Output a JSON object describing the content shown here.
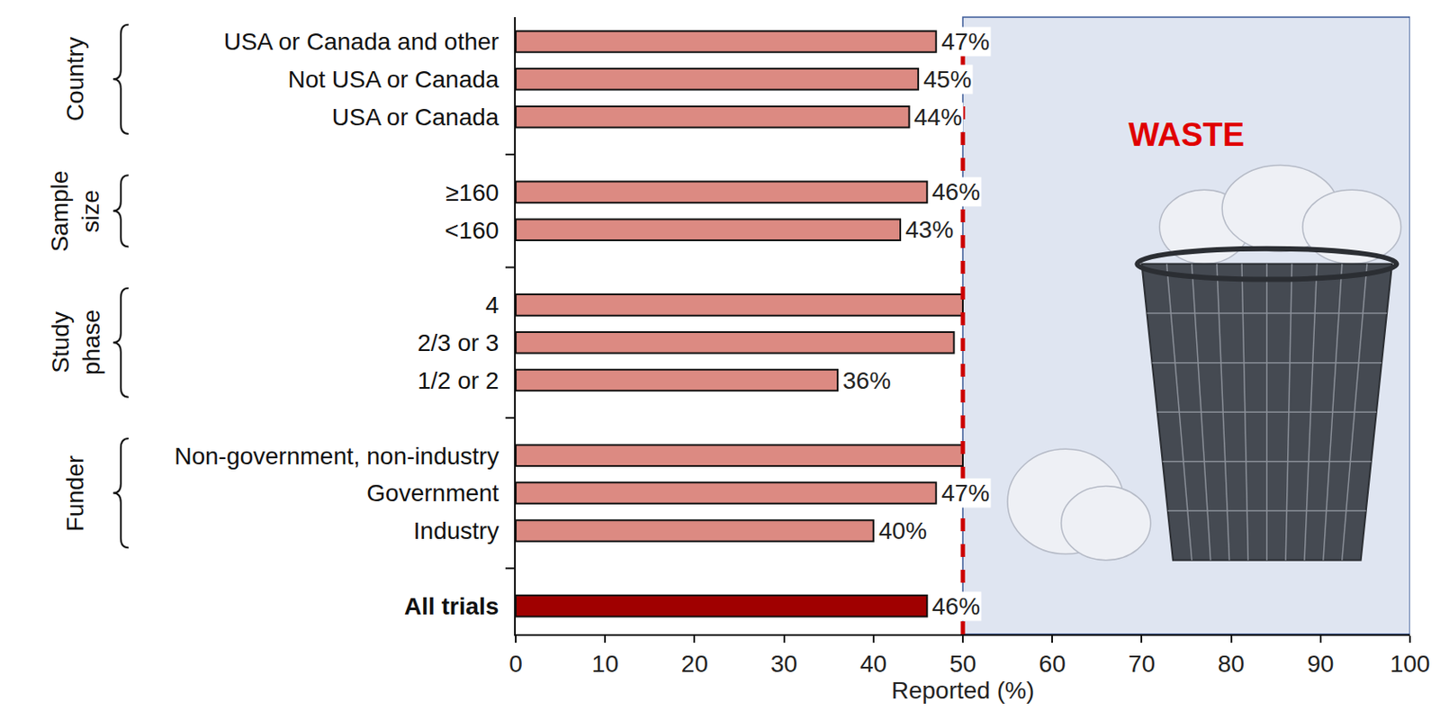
{
  "chart_data": {
    "type": "bar",
    "orientation": "horizontal",
    "categories": [
      "USA or Canada and other",
      "Not USA or Canada",
      "USA or Canada",
      null,
      "≥160",
      "<160",
      null,
      "4",
      "2/3 or 3",
      "1/2 or 2",
      null,
      "Non-government, non-industry",
      "Government",
      "Industry",
      null,
      "All trials"
    ],
    "values": [
      47,
      45,
      44,
      null,
      46,
      43,
      null,
      50,
      49,
      36,
      null,
      50,
      47,
      40,
      null,
      46
    ],
    "value_labels": [
      "47%",
      "45%",
      "44%",
      null,
      "46%",
      "43%",
      null,
      null,
      null,
      "36%",
      null,
      null,
      "47%",
      "40%",
      null,
      "46%"
    ],
    "colors": [
      "#dc8a82",
      "#dc8a82",
      "#dc8a82",
      null,
      "#dc8a82",
      "#dc8a82",
      null,
      "#dc8a82",
      "#dc8a82",
      "#dc8a82",
      null,
      "#dc8a82",
      "#dc8a82",
      "#dc8a82",
      null,
      "#a00000"
    ],
    "groups": [
      {
        "name": "Country",
        "categories": [
          "USA or Canada and other",
          "Not USA or Canada",
          "USA or Canada"
        ]
      },
      {
        "name": "Sample size",
        "categories": [
          "≥160",
          "<160"
        ]
      },
      {
        "name": "Study phase",
        "categories": [
          "4",
          "2/3 or 3",
          "1/2 or 2"
        ]
      },
      {
        "name": "Funder",
        "categories": [
          "Non-government, non-industry",
          "Government",
          "Industry"
        ]
      }
    ],
    "threshold": 50,
    "annotations": [
      {
        "text": "WASTE"
      }
    ],
    "xlabel": "Reported (%)",
    "xlim": [
      0,
      100
    ],
    "xticks": [
      0,
      10,
      20,
      30,
      40,
      50,
      60,
      70,
      80,
      90,
      100
    ],
    "data_labels": true,
    "grid": false
  }
}
